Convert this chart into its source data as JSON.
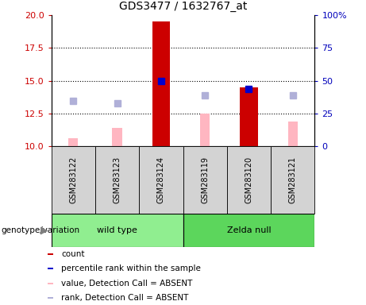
{
  "title": "GDS3477 / 1632767_at",
  "samples": [
    "GSM283122",
    "GSM283123",
    "GSM283124",
    "GSM283119",
    "GSM283120",
    "GSM283121"
  ],
  "group_labels": [
    "wild type",
    "Zelda null"
  ],
  "group_colors": [
    "#90ee90",
    "#5cd65c"
  ],
  "ylim_left": [
    10,
    20
  ],
  "ylim_right": [
    0,
    100
  ],
  "yticks_left": [
    10,
    12.5,
    15,
    17.5,
    20
  ],
  "yticks_right": [
    0,
    25,
    50,
    75,
    100
  ],
  "count_values": [
    null,
    null,
    19.5,
    null,
    14.5,
    null
  ],
  "count_base": 10,
  "percentile_rank": [
    null,
    null,
    15.0,
    null,
    14.4,
    null
  ],
  "value_absent": [
    10.6,
    11.4,
    null,
    12.5,
    null,
    11.9
  ],
  "rank_absent": [
    13.5,
    13.3,
    null,
    13.9,
    null,
    13.9
  ],
  "bar_width": 0.4,
  "count_color": "#cc0000",
  "percentile_color": "#0000cc",
  "value_absent_color": "#ffb6c1",
  "rank_absent_color": "#b0b0d8",
  "legend_items": [
    {
      "label": "count",
      "color": "#cc0000"
    },
    {
      "label": "percentile rank within the sample",
      "color": "#0000cc"
    },
    {
      "label": "value, Detection Call = ABSENT",
      "color": "#ffb6c1"
    },
    {
      "label": "rank, Detection Call = ABSENT",
      "color": "#b0b0d8"
    }
  ],
  "ax_label_color_left": "#cc0000",
  "ax_label_color_right": "#0000bb"
}
